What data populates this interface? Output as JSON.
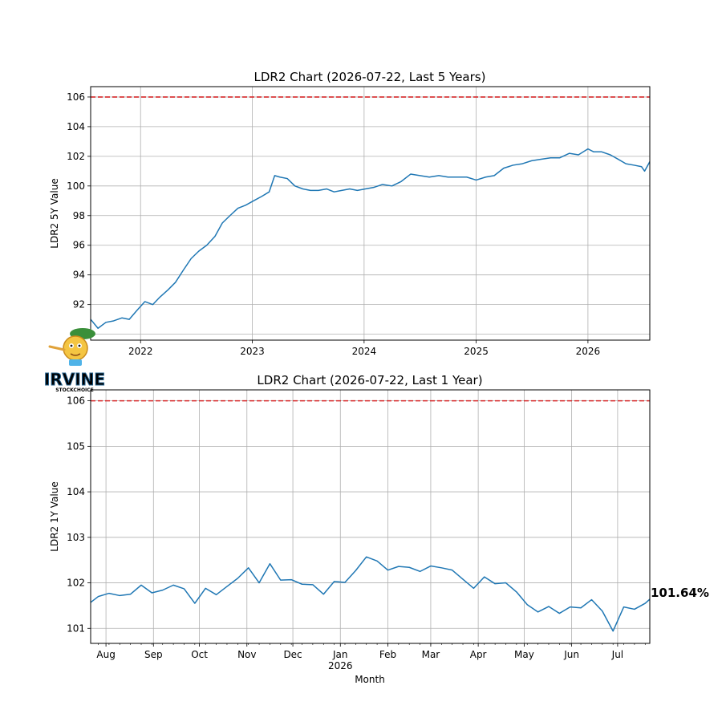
{
  "colors": {
    "line": "#1f77b4",
    "threshold": "#d62728",
    "grid": "#b0b0b0",
    "axes": "#000000",
    "background": "#ffffff"
  },
  "logo": {
    "icon": "pinocchio-mascot-icon",
    "text": "IRVINE",
    "subtext": "STOCKCHOICE"
  },
  "chart_data": [
    {
      "type": "line",
      "title": "LDR2 Chart (2026-07-22, Last 5 Years)",
      "ylabel": "LDR2 5Y Value",
      "xlabel": "",
      "grid": true,
      "xlim": [
        "2021-07-22",
        "2026-07-22"
      ],
      "ylim": [
        89.6,
        106.7
      ],
      "yticks": [
        90,
        92,
        94,
        96,
        98,
        100,
        102,
        104,
        106
      ],
      "xticks": [
        {
          "date": "2022-01-01",
          "label": "2022"
        },
        {
          "date": "2023-01-01",
          "label": "2023"
        },
        {
          "date": "2024-01-01",
          "label": "2024"
        },
        {
          "date": "2025-01-01",
          "label": "2025"
        },
        {
          "date": "2026-01-01",
          "label": "2026"
        }
      ],
      "threshold": 106,
      "series": [
        {
          "x": [
            "2021-07-22",
            "2021-08-15",
            "2021-09-10",
            "2021-10-05",
            "2021-11-01",
            "2021-11-25",
            "2021-12-20",
            "2022-01-15",
            "2022-02-10",
            "2022-03-05",
            "2022-04-01",
            "2022-04-25",
            "2022-05-20",
            "2022-06-15",
            "2022-07-10",
            "2022-08-05",
            "2022-09-01",
            "2022-09-25",
            "2022-10-20",
            "2022-11-15",
            "2022-12-10",
            "2023-01-05",
            "2023-02-01",
            "2023-02-25",
            "2023-03-15",
            "2023-04-01",
            "2023-04-25",
            "2023-05-20",
            "2023-06-15",
            "2023-07-10",
            "2023-08-05",
            "2023-09-01",
            "2023-09-25",
            "2023-10-20",
            "2023-11-15",
            "2023-12-10",
            "2024-01-05",
            "2024-02-01",
            "2024-03-01",
            "2024-04-01",
            "2024-05-01",
            "2024-06-01",
            "2024-07-01",
            "2024-08-01",
            "2024-09-01",
            "2024-10-01",
            "2024-11-01",
            "2024-12-01",
            "2025-01-01",
            "2025-02-01",
            "2025-03-01",
            "2025-04-01",
            "2025-05-01",
            "2025-06-01",
            "2025-07-01",
            "2025-08-01",
            "2025-09-01",
            "2025-10-01",
            "2025-11-01",
            "2025-12-01",
            "2026-01-01",
            "2026-01-20",
            "2026-02-15",
            "2026-03-15",
            "2026-04-10",
            "2026-05-05",
            "2026-06-01",
            "2026-06-25",
            "2026-07-05",
            "2026-07-22"
          ],
          "y": [
            91.0,
            90.4,
            90.8,
            90.9,
            91.1,
            91.0,
            91.6,
            92.2,
            92.0,
            92.5,
            93.0,
            93.5,
            94.3,
            95.1,
            95.6,
            96.0,
            96.6,
            97.5,
            98.0,
            98.5,
            98.7,
            99.0,
            99.3,
            99.6,
            100.7,
            100.6,
            100.5,
            100.0,
            99.8,
            99.7,
            99.7,
            99.8,
            99.6,
            99.7,
            99.8,
            99.7,
            99.8,
            99.9,
            100.1,
            100.0,
            100.3,
            100.8,
            100.7,
            100.6,
            100.7,
            100.6,
            100.6,
            100.6,
            100.4,
            100.6,
            100.7,
            101.2,
            101.4,
            101.5,
            101.7,
            101.8,
            101.9,
            101.9,
            102.2,
            102.1,
            102.5,
            102.3,
            102.3,
            102.1,
            101.8,
            101.5,
            101.4,
            101.3,
            101.0,
            101.64
          ]
        }
      ]
    },
    {
      "type": "line",
      "title": "LDR2 Chart (2026-07-22, Last 1 Year)",
      "ylabel": "LDR2 1Y Value",
      "xlabel": "Month",
      "grid": true,
      "xlim": [
        "2025-07-22",
        "2026-07-22"
      ],
      "ylim": [
        100.67,
        106.24
      ],
      "yticks": [
        101,
        102,
        103,
        104,
        105,
        106
      ],
      "xticks": [
        {
          "date": "2025-08-01",
          "label": "Aug",
          "sub": ""
        },
        {
          "date": "2025-09-01",
          "label": "Sep",
          "sub": ""
        },
        {
          "date": "2025-10-01",
          "label": "Oct",
          "sub": ""
        },
        {
          "date": "2025-11-01",
          "label": "Nov",
          "sub": ""
        },
        {
          "date": "2025-12-01",
          "label": "Dec",
          "sub": ""
        },
        {
          "date": "2026-01-01",
          "label": "Jan",
          "sub": "2026"
        },
        {
          "date": "2026-02-01",
          "label": "Feb",
          "sub": ""
        },
        {
          "date": "2026-03-01",
          "label": "Mar",
          "sub": ""
        },
        {
          "date": "2026-04-01",
          "label": "Apr",
          "sub": ""
        },
        {
          "date": "2026-05-01",
          "label": "May",
          "sub": ""
        },
        {
          "date": "2026-06-01",
          "label": "Jun",
          "sub": ""
        },
        {
          "date": "2026-07-01",
          "label": "Jul",
          "sub": ""
        }
      ],
      "threshold": 106,
      "end_label": "101.64%",
      "series": [
        {
          "x": [
            "2025-07-22",
            "2025-07-27",
            "2025-08-03",
            "2025-08-10",
            "2025-08-17",
            "2025-08-24",
            "2025-08-31",
            "2025-09-07",
            "2025-09-14",
            "2025-09-21",
            "2025-09-28",
            "2025-10-05",
            "2025-10-12",
            "2025-10-19",
            "2025-10-26",
            "2025-11-02",
            "2025-11-09",
            "2025-11-16",
            "2025-11-23",
            "2025-11-30",
            "2025-12-07",
            "2025-12-14",
            "2025-12-21",
            "2025-12-28",
            "2026-01-04",
            "2026-01-11",
            "2026-01-18",
            "2026-01-25",
            "2026-02-01",
            "2026-02-08",
            "2026-02-15",
            "2026-02-22",
            "2026-03-01",
            "2026-03-08",
            "2026-03-15",
            "2026-03-22",
            "2026-03-29",
            "2026-04-05",
            "2026-04-12",
            "2026-04-19",
            "2026-04-26",
            "2026-05-03",
            "2026-05-10",
            "2026-05-17",
            "2026-05-24",
            "2026-05-31",
            "2026-06-07",
            "2026-06-14",
            "2026-06-21",
            "2026-06-28",
            "2026-07-05",
            "2026-07-12",
            "2026-07-19",
            "2026-07-22"
          ],
          "y": [
            101.57,
            101.7,
            101.77,
            101.72,
            101.75,
            101.95,
            101.78,
            101.84,
            101.95,
            101.87,
            101.55,
            101.88,
            101.74,
            101.92,
            102.1,
            102.33,
            102.0,
            102.42,
            102.06,
            102.07,
            101.97,
            101.96,
            101.75,
            102.03,
            102.01,
            102.27,
            102.57,
            102.48,
            102.28,
            102.36,
            102.34,
            102.25,
            102.37,
            102.33,
            102.28,
            102.08,
            101.88,
            102.13,
            101.98,
            102.0,
            101.8,
            101.52,
            101.36,
            101.48,
            101.33,
            101.47,
            101.45,
            101.63,
            101.38,
            100.94,
            101.47,
            101.42,
            101.55,
            101.64
          ]
        }
      ]
    }
  ]
}
